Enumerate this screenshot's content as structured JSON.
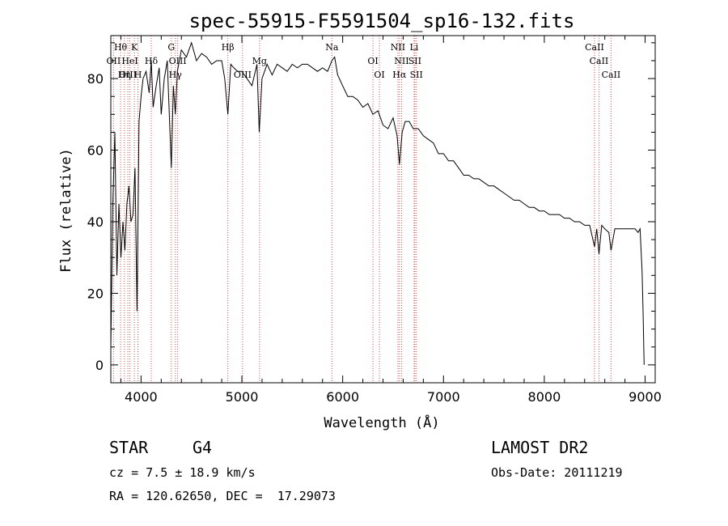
{
  "chart_data": {
    "type": "line",
    "title": "spec-55915-F5591504_sp16-132.fits",
    "xlabel": "Wavelength (Å)",
    "ylabel": "Flux (relative)",
    "xlim": [
      3700,
      9100
    ],
    "ylim": [
      -5,
      92
    ],
    "xticks": [
      4000,
      5000,
      6000,
      7000,
      8000,
      9000
    ],
    "yticks": [
      0,
      20,
      40,
      60,
      80
    ],
    "series": [
      {
        "name": "flux",
        "x": [
          3700,
          3720,
          3740,
          3760,
          3780,
          3800,
          3820,
          3840,
          3860,
          3880,
          3900,
          3920,
          3940,
          3960,
          3980,
          4000,
          4020,
          4050,
          4080,
          4101,
          4120,
          4150,
          4180,
          4200,
          4230,
          4260,
          4300,
          4320,
          4340,
          4360,
          4400,
          4450,
          4500,
          4550,
          4600,
          4650,
          4700,
          4750,
          4800,
          4830,
          4861,
          4890,
          4920,
          4960,
          5000,
          5050,
          5100,
          5150,
          5172,
          5200,
          5250,
          5300,
          5350,
          5400,
          5450,
          5500,
          5550,
          5600,
          5650,
          5700,
          5750,
          5800,
          5850,
          5893,
          5920,
          5950,
          6000,
          6050,
          6100,
          6150,
          6200,
          6250,
          6300,
          6350,
          6400,
          6450,
          6500,
          6540,
          6563,
          6590,
          6620,
          6660,
          6700,
          6750,
          6800,
          6850,
          6900,
          6950,
          7000,
          7050,
          7100,
          7150,
          7200,
          7250,
          7300,
          7350,
          7400,
          7450,
          7500,
          7550,
          7600,
          7650,
          7700,
          7750,
          7800,
          7850,
          7900,
          7950,
          8000,
          8050,
          8100,
          8150,
          8200,
          8250,
          8300,
          8350,
          8400,
          8450,
          8498,
          8520,
          8542,
          8570,
          8600,
          8640,
          8662,
          8700,
          8750,
          8800,
          8850,
          8900,
          8930,
          8950,
          8970,
          8980,
          8990
        ],
        "values": [
          5,
          45,
          65,
          25,
          45,
          30,
          40,
          32,
          45,
          50,
          40,
          42,
          55,
          15,
          68,
          75,
          80,
          82,
          76,
          85,
          72,
          78,
          83,
          70,
          80,
          85,
          55,
          78,
          70,
          82,
          88,
          86,
          90,
          85,
          87,
          86,
          84,
          85,
          85,
          80,
          70,
          84,
          83,
          82,
          82,
          80,
          78,
          84,
          65,
          80,
          84,
          81,
          84,
          83,
          82,
          84,
          83,
          84,
          84,
          83,
          82,
          83,
          82,
          85,
          86,
          81,
          78,
          75,
          75,
          74,
          72,
          73,
          70,
          71,
          67,
          66,
          69,
          64,
          56,
          65,
          68,
          68,
          66,
          66,
          64,
          63,
          62,
          59,
          59,
          57,
          57,
          55,
          53,
          53,
          52,
          52,
          51,
          50,
          50,
          49,
          48,
          47,
          46,
          46,
          45,
          44,
          44,
          43,
          43,
          42,
          42,
          42,
          41,
          41,
          40,
          40,
          39,
          39,
          33,
          38,
          31,
          39,
          38,
          37,
          32,
          38,
          38,
          38,
          38,
          38,
          37,
          38,
          26,
          15,
          0
        ]
      }
    ],
    "spectral_lines": [
      {
        "label": "Hθ",
        "x": 3797,
        "row": 0
      },
      {
        "label": "K",
        "x": 3934,
        "row": 0
      },
      {
        "label": "G",
        "x": 4300,
        "row": 0
      },
      {
        "label": "Hβ",
        "x": 4861,
        "row": 0
      },
      {
        "label": "Na",
        "x": 5893,
        "row": 0
      },
      {
        "label": "NII",
        "x": 6548,
        "row": 0
      },
      {
        "label": "Li",
        "x": 6708,
        "row": 0
      },
      {
        "label": "CaII",
        "x": 8498,
        "row": 0
      },
      {
        "label": "OII",
        "x": 3727,
        "row": 1
      },
      {
        "label": "HeI",
        "x": 3889,
        "row": 1
      },
      {
        "label": "Hδ",
        "x": 4101,
        "row": 1
      },
      {
        "label": "OIII",
        "x": 4363,
        "row": 1
      },
      {
        "label": "Mg",
        "x": 5175,
        "row": 1
      },
      {
        "label": "OI",
        "x": 6300,
        "row": 1
      },
      {
        "label": "NII",
        "x": 6584,
        "row": 1
      },
      {
        "label": "SII",
        "x": 6716,
        "row": 1
      },
      {
        "label": "CaII",
        "x": 8542,
        "row": 1
      },
      {
        "label": "OIII",
        "x": 3869,
        "row": 2
      },
      {
        "label": "Hη",
        "x": 3835,
        "row": 2
      },
      {
        "label": "H",
        "x": 3969,
        "row": 2
      },
      {
        "label": "Hγ",
        "x": 4340,
        "row": 2
      },
      {
        "label": "OIII",
        "x": 5007,
        "row": 2
      },
      {
        "label": "OI",
        "x": 6364,
        "row": 2
      },
      {
        "label": "Hα",
        "x": 6563,
        "row": 2
      },
      {
        "label": "SII",
        "x": 6731,
        "row": 2
      },
      {
        "label": "CaII",
        "x": 8662,
        "row": 2
      }
    ],
    "line_color": "#000000",
    "marker_color": "#d05050"
  },
  "info": {
    "class": "STAR",
    "subclass": "G4",
    "survey": "LAMOST DR2",
    "redshift": "cz = 7.5 ± 18.9 km/s",
    "obs_date": "Obs-Date: 20111219",
    "coords": "RA = 120.62650, DEC =  17.29073"
  }
}
